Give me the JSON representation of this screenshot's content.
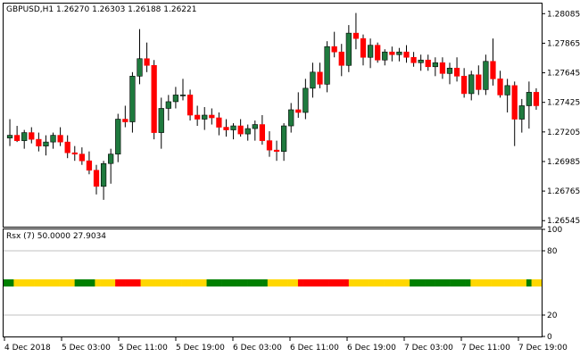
{
  "chart_data": [
    {
      "type": "candlestick",
      "symbol": "GBPUSD",
      "timeframe": "H1",
      "header_values": [
        "1.26270",
        "1.26303",
        "1.26188",
        "1.26221"
      ],
      "y_ticks": [
        "1.28085",
        "1.27865",
        "1.27645",
        "1.27425",
        "1.27205",
        "1.26985",
        "1.26765",
        "1.26545"
      ],
      "ylim": [
        1.265,
        1.2816
      ],
      "colors": {
        "bull": "#1f7a3e",
        "bear": "#ff0000",
        "wick": "#000000",
        "grid": "#c0c0c0"
      },
      "candles": [
        [
          1.2716,
          1.273,
          1.271,
          1.2718
        ],
        [
          1.2718,
          1.2725,
          1.2713,
          1.2714
        ],
        [
          1.2714,
          1.2722,
          1.2708,
          1.272
        ],
        [
          1.272,
          1.2724,
          1.2712,
          1.2715
        ],
        [
          1.2715,
          1.272,
          1.2706,
          1.271
        ],
        [
          1.271,
          1.2718,
          1.2703,
          1.2713
        ],
        [
          1.2713,
          1.272,
          1.2708,
          1.2718
        ],
        [
          1.2718,
          1.2724,
          1.271,
          1.2713
        ],
        [
          1.2713,
          1.2718,
          1.2701,
          1.2705
        ],
        [
          1.2705,
          1.271,
          1.2699,
          1.2704
        ],
        [
          1.2704,
          1.2709,
          1.2696,
          1.2699
        ],
        [
          1.2699,
          1.2706,
          1.2689,
          1.2692
        ],
        [
          1.2692,
          1.2696,
          1.2674,
          1.268
        ],
        [
          1.268,
          1.2699,
          1.267,
          1.2697
        ],
        [
          1.2697,
          1.2708,
          1.2682,
          1.2704
        ],
        [
          1.2704,
          1.2734,
          1.2698,
          1.273
        ],
        [
          1.273,
          1.274,
          1.2724,
          1.2728
        ],
        [
          1.2728,
          1.2765,
          1.272,
          1.2762
        ],
        [
          1.2762,
          1.2797,
          1.2756,
          1.2775
        ],
        [
          1.2775,
          1.2787,
          1.2765,
          1.277
        ],
        [
          1.277,
          1.2774,
          1.2715,
          1.272
        ],
        [
          1.272,
          1.2746,
          1.2708,
          1.2738
        ],
        [
          1.2738,
          1.2748,
          1.2729,
          1.2743
        ],
        [
          1.2743,
          1.2754,
          1.2738,
          1.2748
        ],
        [
          1.2748,
          1.276,
          1.2744,
          1.2748
        ],
        [
          1.2748,
          1.2752,
          1.2729,
          1.2733
        ],
        [
          1.2733,
          1.274,
          1.2725,
          1.273
        ],
        [
          1.273,
          1.2739,
          1.2722,
          1.2733
        ],
        [
          1.2733,
          1.2738,
          1.2726,
          1.2731
        ],
        [
          1.2731,
          1.2735,
          1.2718,
          1.2724
        ],
        [
          1.2724,
          1.273,
          1.2717,
          1.2722
        ],
        [
          1.2722,
          1.2727,
          1.2715,
          1.2725
        ],
        [
          1.2725,
          1.273,
          1.2717,
          1.2719
        ],
        [
          1.2719,
          1.2726,
          1.2714,
          1.2723
        ],
        [
          1.2723,
          1.2729,
          1.2714,
          1.2726
        ],
        [
          1.2726,
          1.2733,
          1.2711,
          1.2714
        ],
        [
          1.2714,
          1.2721,
          1.2702,
          1.2707
        ],
        [
          1.2707,
          1.2714,
          1.2699,
          1.2706
        ],
        [
          1.2706,
          1.2727,
          1.2699,
          1.2725
        ],
        [
          1.2725,
          1.2742,
          1.272,
          1.2737
        ],
        [
          1.2737,
          1.275,
          1.2731,
          1.2735
        ],
        [
          1.2735,
          1.276,
          1.273,
          1.2753
        ],
        [
          1.2753,
          1.2772,
          1.2746,
          1.2765
        ],
        [
          1.2765,
          1.2772,
          1.2753,
          1.2756
        ],
        [
          1.2756,
          1.2788,
          1.275,
          1.2784
        ],
        [
          1.2784,
          1.2795,
          1.2776,
          1.278
        ],
        [
          1.278,
          1.2786,
          1.2762,
          1.277
        ],
        [
          1.277,
          1.28,
          1.2765,
          1.2794
        ],
        [
          1.2794,
          1.2809,
          1.2782,
          1.279
        ],
        [
          1.279,
          1.2793,
          1.277,
          1.2776
        ],
        [
          1.2776,
          1.279,
          1.2768,
          1.2785
        ],
        [
          1.2785,
          1.2787,
          1.2772,
          1.2774
        ],
        [
          1.2774,
          1.2782,
          1.277,
          1.278
        ],
        [
          1.278,
          1.2784,
          1.2773,
          1.2778
        ],
        [
          1.2778,
          1.2783,
          1.2773,
          1.278
        ],
        [
          1.278,
          1.2785,
          1.2772,
          1.2776
        ],
        [
          1.2776,
          1.278,
          1.2769,
          1.2772
        ],
        [
          1.2772,
          1.2778,
          1.2766,
          1.2774
        ],
        [
          1.2774,
          1.2778,
          1.2766,
          1.2769
        ],
        [
          1.2769,
          1.2776,
          1.2762,
          1.2772
        ],
        [
          1.2772,
          1.2776,
          1.276,
          1.2764
        ],
        [
          1.2764,
          1.2772,
          1.2756,
          1.2768
        ],
        [
          1.2768,
          1.2776,
          1.2758,
          1.2762
        ],
        [
          1.2762,
          1.2768,
          1.2746,
          1.2749
        ],
        [
          1.2749,
          1.2766,
          1.2744,
          1.2763
        ],
        [
          1.2763,
          1.277,
          1.2748,
          1.2752
        ],
        [
          1.2752,
          1.2778,
          1.2748,
          1.2773
        ],
        [
          1.2773,
          1.279,
          1.2755,
          1.276
        ],
        [
          1.276,
          1.2766,
          1.2746,
          1.2748
        ],
        [
          1.2748,
          1.276,
          1.2735,
          1.2755
        ],
        [
          1.2755,
          1.2758,
          1.271,
          1.273
        ],
        [
          1.273,
          1.2745,
          1.272,
          1.274
        ],
        [
          1.274,
          1.2758,
          1.2723,
          1.275
        ],
        [
          1.275,
          1.2753,
          1.2737,
          1.274
        ]
      ]
    },
    {
      "type": "heatmap",
      "indicator_label": "Rsx (7) 50.0000 27.9034",
      "y_ticks": [
        "100",
        "80",
        "20",
        "0"
      ],
      "ylim": [
        0,
        100
      ],
      "levels": [
        80,
        20
      ],
      "band_value": 50,
      "color_map": {
        "G": "#008000",
        "Y": "#ffd700",
        "R": "#ff0000"
      },
      "bars": "GGYYYYYYYYYYYYGGGGYYYYRRRRRYYYYYYYYYYYYYGGGGGGGGGGGGYYYYYYRRRRRRRRRRYYYYYYYYYYYYGGGGGGGGGGGGYYYYYYYYYYYGYY",
      "x_ticks": [
        "4 Dec 2018",
        "5 Dec 03:00",
        "5 Dec 11:00",
        "5 Dec 19:00",
        "6 Dec 03:00",
        "6 Dec 11:00",
        "6 Dec 19:00",
        "7 Dec 03:00",
        "7 Dec 11:00",
        "7 Dec 19:00"
      ]
    }
  ]
}
